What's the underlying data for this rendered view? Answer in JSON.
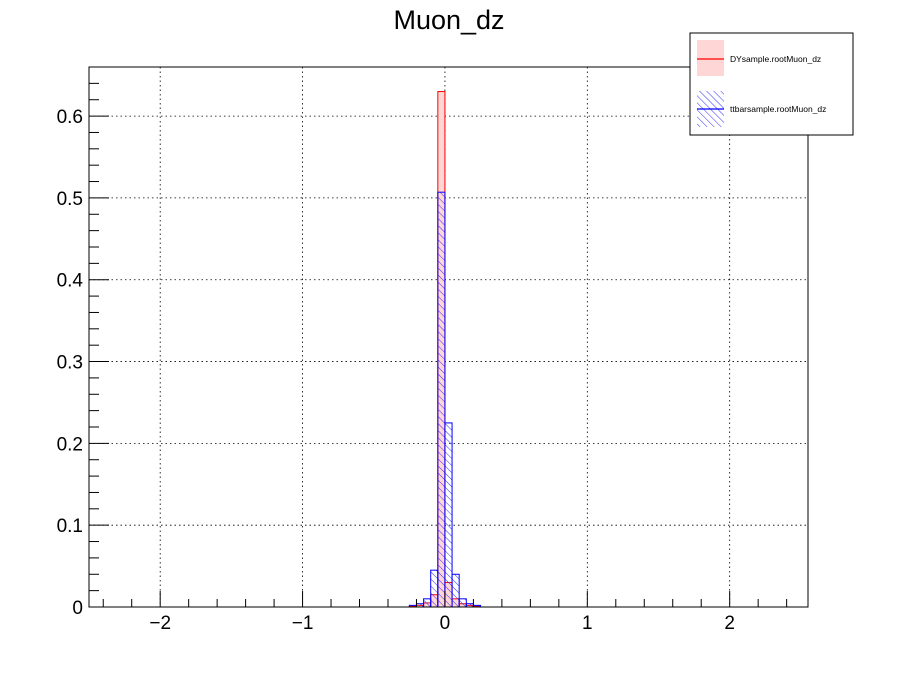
{
  "chart_data": {
    "type": "bar",
    "title": "Muon_dz",
    "xlabel": "",
    "ylabel": "",
    "xlim": [
      -2.5,
      2.55
    ],
    "ylim": [
      0,
      0.66
    ],
    "grid": true,
    "legend_position": "top-right",
    "x_ticks": [
      -2,
      -1,
      0,
      1,
      2
    ],
    "x_tick_labels": [
      "−2",
      "−1",
      "0",
      "1",
      "2"
    ],
    "y_ticks": [
      0,
      0.1,
      0.2,
      0.3,
      0.4,
      0.5,
      0.6
    ],
    "y_tick_labels": [
      "0",
      "0.1",
      "0.2",
      "0.3",
      "0.4",
      "0.5",
      "0.6"
    ],
    "bin_width": 0.05,
    "bin_centers": [
      -0.225,
      -0.175,
      -0.125,
      -0.075,
      -0.025,
      0.025,
      0.075,
      0.125,
      0.175,
      0.225
    ],
    "series": [
      {
        "name": "DYsample.rootMuon_dz",
        "color": "#ff0000",
        "fill": "#ffd6d6",
        "values": [
          0.001,
          0.002,
          0.005,
          0.015,
          0.63,
          0.03,
          0.01,
          0.004,
          0.002,
          0.001
        ]
      },
      {
        "name": "ttbarsample.rootMuon_dz",
        "color": "#0000ff",
        "fill": "hatch",
        "values": [
          0.002,
          0.004,
          0.01,
          0.045,
          0.507,
          0.225,
          0.04,
          0.01,
          0.004,
          0.002
        ]
      }
    ]
  }
}
